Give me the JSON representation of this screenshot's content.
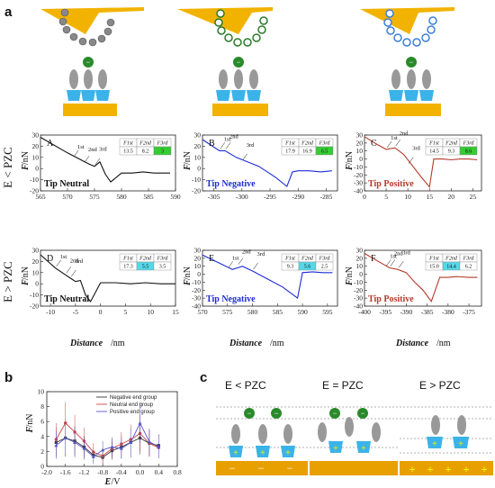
{
  "panel_labels": {
    "a": "a",
    "b": "b",
    "c": "c"
  },
  "row_labels": {
    "row1": "E < PZC",
    "row2": "E > PZC"
  },
  "shared_axis": {
    "ylabel": "F",
    "yunit": "/nN",
    "xlabel": "Distance",
    "xunit": "/nm"
  },
  "colors": {
    "neutral": "#111111",
    "negative": "#1c2bd6",
    "positive": "#b53a2a",
    "gold": "#f2b300",
    "highlight_green": "#33cc33",
    "highlight_cyan": "#55d8e8"
  },
  "table_headers": [
    "F1st",
    "F2nd",
    "F3rd"
  ],
  "chart_data": [
    {
      "id": "A",
      "type": "line",
      "label": "A",
      "tip": "Tip Neutral",
      "xlim": [
        565,
        590
      ],
      "ylim": [
        -20,
        30
      ],
      "xticks": [
        "565",
        "570",
        "575",
        "580",
        "585",
        "590"
      ],
      "yticks": [
        "30",
        "20",
        "10",
        "0",
        "-10",
        "-20"
      ],
      "table": [
        "13.5",
        "8.2",
        "3"
      ],
      "highlight": 2,
      "hlcolor": "#33cc33",
      "color": "#111111",
      "x": [
        565,
        570,
        572,
        574,
        575,
        576,
        577,
        578,
        580,
        582,
        584,
        586,
        588,
        589
      ],
      "y": [
        28,
        14,
        9,
        4,
        2,
        6,
        -5,
        -12,
        -4,
        -4,
        -3,
        -4,
        -4,
        -4
      ],
      "events": [
        {
          "label": "1st",
          "x": 571
        },
        {
          "label": "2nd",
          "x": 573
        },
        {
          "label": "3rd",
          "x": 575
        }
      ]
    },
    {
      "id": "B",
      "type": "line",
      "label": "B",
      "tip": "Tip Negative",
      "xlim": [
        -307,
        -283
      ],
      "ylim": [
        -20,
        30
      ],
      "xticks": [
        "-305",
        "-300",
        "-295",
        "-290",
        "-285"
      ],
      "yticks": [
        "30",
        "20",
        "10",
        "0",
        "-10",
        "-20"
      ],
      "table": [
        "17.9",
        "16.9",
        "6.5"
      ],
      "highlight": 2,
      "hlcolor": "#33cc33",
      "color": "#1c2bd6",
      "x": [
        -307,
        -304,
        -303,
        -301,
        -299,
        -297,
        -294,
        -292,
        -291,
        -290,
        -288,
        -286,
        -284
      ],
      "y": [
        26,
        16,
        16,
        10,
        6,
        2,
        -8,
        -16,
        -3,
        -2,
        -2,
        -3,
        -2
      ],
      "events": [
        {
          "label": "1st",
          "x": -304
        },
        {
          "label": "2nd",
          "x": -303
        },
        {
          "label": "3rd",
          "x": -300
        }
      ]
    },
    {
      "id": "C",
      "type": "line",
      "label": "C",
      "tip": "Tip Positive",
      "xlim": [
        0,
        27
      ],
      "ylim": [
        -40,
        30
      ],
      "xticks": [
        "0",
        "5",
        "10",
        "15",
        "20",
        "25"
      ],
      "yticks": [
        "30",
        "20",
        "10",
        "0",
        "-10",
        "-20",
        "-30",
        "-40"
      ],
      "table": [
        "14.5",
        "9.3",
        "8.6"
      ],
      "highlight": 2,
      "hlcolor": "#33cc33",
      "color": "#b53a2a",
      "x": [
        0,
        3,
        5,
        7,
        9,
        11,
        13,
        15,
        16,
        18,
        20,
        22,
        24,
        26
      ],
      "y": [
        28,
        18,
        12,
        14,
        6,
        -8,
        -22,
        -35,
        0,
        0,
        -1,
        0,
        0,
        -1
      ],
      "events": [
        {
          "label": "1st",
          "x": 5
        },
        {
          "label": "2nd",
          "x": 7
        },
        {
          "label": "3rd",
          "x": 10
        }
      ]
    },
    {
      "id": "D",
      "type": "line",
      "label": "D",
      "tip": "Tip Neutral",
      "xlim": [
        -12,
        15
      ],
      "ylim": [
        -20,
        30
      ],
      "xticks": [
        "-10",
        "-5",
        "0",
        "5",
        "10",
        "15"
      ],
      "yticks": [
        "30",
        "20",
        "10",
        "0",
        "-10",
        "-20"
      ],
      "table": [
        "17.3",
        "5.5",
        "3.5"
      ],
      "highlight": 1,
      "hlcolor": "#55d8e8",
      "color": "#111111",
      "x": [
        -12,
        -9,
        -7,
        -6,
        -5,
        -4,
        -3,
        -2,
        0,
        3,
        6,
        9,
        12,
        15
      ],
      "y": [
        26,
        14,
        8,
        5,
        2,
        3,
        -10,
        -16,
        1,
        1,
        0,
        1,
        0,
        0
      ],
      "events": [
        {
          "label": "1st",
          "x": -9
        },
        {
          "label": "2nd",
          "x": -7
        },
        {
          "label": "3rd",
          "x": -6
        }
      ]
    },
    {
      "id": "E",
      "type": "line",
      "label": "E",
      "tip": "Tip Negative",
      "xlim": [
        570,
        597
      ],
      "ylim": [
        -40,
        30
      ],
      "xticks": [
        "570",
        "575",
        "580",
        "585",
        "590",
        "595"
      ],
      "yticks": [
        "30",
        "20",
        "10",
        "0",
        "-10",
        "-20",
        "-30",
        "-40"
      ],
      "table": [
        "9.3",
        "5.6",
        "2.5"
      ],
      "highlight": 1,
      "hlcolor": "#55d8e8",
      "color": "#1c2bd6",
      "x": [
        570,
        574,
        576,
        578,
        580,
        583,
        586,
        589,
        590,
        592,
        594,
        596
      ],
      "y": [
        24,
        12,
        6,
        10,
        4,
        -6,
        -16,
        -30,
        2,
        3,
        2,
        2
      ],
      "events": [
        {
          "label": "1st",
          "x": 575
        },
        {
          "label": "2nd",
          "x": 577
        },
        {
          "label": "3rd",
          "x": 580
        }
      ]
    },
    {
      "id": "F",
      "type": "line",
      "label": "F",
      "tip": "Tip Positive",
      "xlim": [
        -400,
        -372
      ],
      "ylim": [
        -40,
        30
      ],
      "xticks": [
        "-400",
        "-395",
        "-390",
        "-385",
        "-380",
        "-375"
      ],
      "yticks": [
        "30",
        "20",
        "10",
        "0",
        "-10",
        "-20",
        "-30",
        "-40"
      ],
      "table": [
        "15.0",
        "14.4",
        "6.2"
      ],
      "highlight": 1,
      "hlcolor": "#55d8e8",
      "color": "#b53a2a",
      "x": [
        -400,
        -396,
        -394,
        -392,
        -390,
        -388,
        -386,
        -384,
        -382,
        -380,
        -378,
        -375,
        -373
      ],
      "y": [
        26,
        14,
        8,
        6,
        2,
        -10,
        -20,
        -34,
        -4,
        -4,
        -3,
        -4,
        -4
      ],
      "events": [
        {
          "label": "1st",
          "x": -395
        },
        {
          "label": "2nd",
          "x": -394
        },
        {
          "label": "3rd",
          "x": -392
        }
      ]
    },
    {
      "id": "b",
      "type": "line",
      "xlabel": "E",
      "xunit": "/V",
      "ylabel": "F",
      "yunit": "/nN",
      "xlim": [
        -2.0,
        0.8
      ],
      "ylim": [
        0,
        10
      ],
      "xticks": [
        "-2.0",
        "-1.6",
        "-1.2",
        "-0.8",
        "-0.4",
        "0.0",
        "0.4",
        "0.8"
      ],
      "yticks": [
        "0",
        "2",
        "4",
        "6",
        "8",
        "10"
      ],
      "x": [
        -1.8,
        -1.6,
        -1.4,
        -1.2,
        -1.0,
        -0.8,
        -0.6,
        -0.4,
        -0.2,
        0.0,
        0.2,
        0.4
      ],
      "series": [
        {
          "name": "Negative end group",
          "color": "#333333",
          "y": [
            3.2,
            3.8,
            3.4,
            2.6,
            1.5,
            1.2,
            2.1,
            2.6,
            3.2,
            3.8,
            3.1,
            2.8
          ],
          "err": [
            2.0,
            2.5,
            2.0,
            1.5,
            1.0,
            1.0,
            1.2,
            1.5,
            2.0,
            2.2,
            1.8,
            1.5
          ]
        },
        {
          "name": "Neutral end group",
          "color": "#cc4444",
          "y": [
            3.6,
            5.8,
            4.6,
            3.4,
            1.9,
            1.4,
            2.4,
            3.0,
            3.6,
            4.4,
            3.1,
            2.5
          ],
          "err": [
            2.2,
            2.8,
            2.3,
            1.8,
            1.2,
            1.0,
            1.3,
            1.6,
            2.0,
            2.5,
            1.8,
            1.4
          ]
        },
        {
          "name": "Positive end group",
          "color": "#5555cc",
          "y": [
            2.8,
            3.8,
            3.2,
            2.4,
            1.3,
            2.2,
            2.6,
            2.4,
            3.2,
            5.8,
            3.3,
            2.6
          ],
          "err": [
            1.8,
            2.2,
            2.0,
            1.5,
            1.0,
            1.2,
            1.3,
            1.4,
            1.8,
            2.8,
            1.8,
            1.5
          ]
        }
      ]
    }
  ],
  "schematic_c": {
    "labels": [
      "E < PZC",
      "E = PZC",
      "E > PZC"
    ]
  }
}
